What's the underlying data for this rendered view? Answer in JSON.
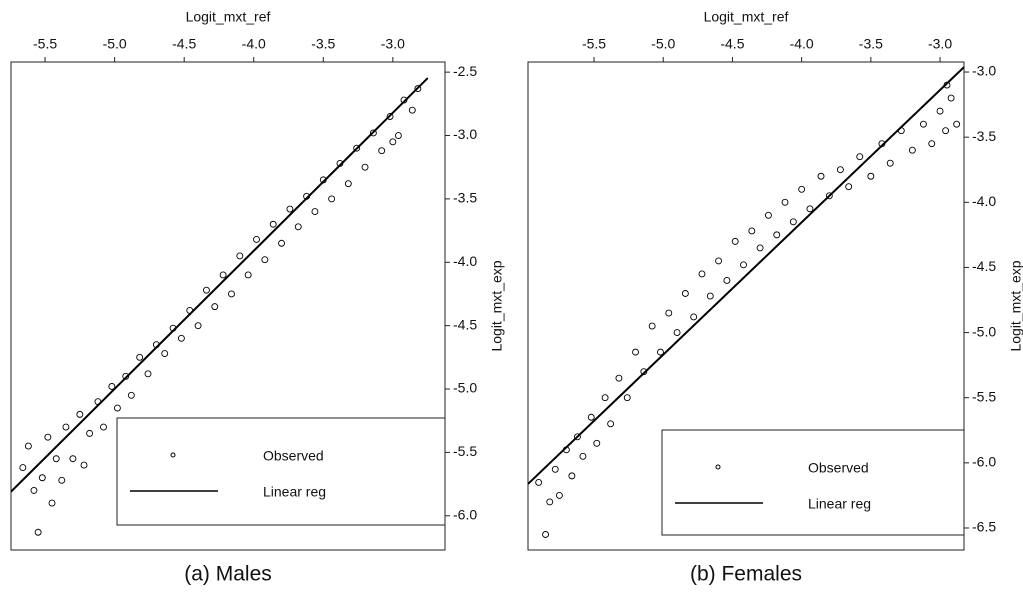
{
  "chart_data": [
    {
      "type": "scatter",
      "caption": "(a) Males",
      "xlabel": "Logit_mxt_ref",
      "ylabel": "Logit_mxt_exp",
      "xlim": [
        -5.745,
        -2.625
      ],
      "ylim": [
        -6.27,
        -2.42
      ],
      "xticks": [
        -5.5,
        {
          "value": -5,
          "label": "-5.0"
        },
        -4.5,
        {
          "value": -4,
          "label": "-4.0"
        },
        -3.5,
        {
          "value": -3,
          "label": "-3.0"
        }
      ],
      "yticks": [
        -2.5,
        {
          "value": -3,
          "label": "-3.0"
        },
        -3.5,
        {
          "value": -4,
          "label": "-4.0"
        },
        -4.5,
        {
          "value": -5,
          "label": "-5.0"
        },
        -5.5,
        {
          "value": -6,
          "label": "-6.0"
        }
      ],
      "legend": "lower right",
      "series": [
        {
          "name": "Observed",
          "type": "scatter",
          "color": "#000000",
          "x": [
            -5.66,
            -5.62,
            -5.58,
            -5.55,
            -5.52,
            -5.48,
            -5.45,
            -5.42,
            -5.38,
            -5.35,
            -5.3,
            -5.25,
            -5.22,
            -5.18,
            -5.12,
            -5.08,
            -5.02,
            -4.98,
            -4.92,
            -4.88,
            -4.82,
            -4.76,
            -4.7,
            -4.64,
            -4.58,
            -4.52,
            -4.46,
            -4.4,
            -4.34,
            -4.28,
            -4.22,
            -4.16,
            -4.1,
            -4.04,
            -3.98,
            -3.92,
            -3.86,
            -3.8,
            -3.74,
            -3.68,
            -3.62,
            -3.56,
            -3.5,
            -3.44,
            -3.38,
            -3.32,
            -3.26,
            -3.2,
            -3.14,
            -3.08,
            -3.02,
            -2.96,
            -2.92,
            -2.86,
            -2.82,
            -3.0
          ],
          "values": [
            -5.62,
            -5.45,
            -5.8,
            -6.13,
            -5.7,
            -5.38,
            -5.9,
            -5.55,
            -5.72,
            -5.3,
            -5.55,
            -5.2,
            -5.6,
            -5.35,
            -5.1,
            -5.3,
            -4.98,
            -5.15,
            -4.9,
            -5.05,
            -4.75,
            -4.88,
            -4.65,
            -4.72,
            -4.52,
            -4.6,
            -4.38,
            -4.5,
            -4.22,
            -4.35,
            -4.1,
            -4.25,
            -3.95,
            -4.1,
            -3.82,
            -3.98,
            -3.7,
            -3.85,
            -3.58,
            -3.72,
            -3.48,
            -3.6,
            -3.35,
            -3.5,
            -3.22,
            -3.38,
            -3.1,
            -3.25,
            -2.98,
            -3.12,
            -2.85,
            -3.0,
            -2.72,
            -2.8,
            -2.63,
            -3.05
          ]
        },
        {
          "name": "Linear reg",
          "type": "line",
          "color": "#000000",
          "x": [
            -5.745,
            -2.749
          ],
          "values": [
            -5.81,
            -2.547
          ]
        }
      ]
    },
    {
      "type": "scatter",
      "caption": "(b) Females",
      "xlabel": "Logit_mxt_ref",
      "ylabel": "Logit_mxt_exp",
      "xlim": [
        -5.977,
        -2.827
      ],
      "ylim": [
        -6.669,
        -2.923
      ],
      "xticks": [
        -5.5,
        {
          "value": -5,
          "label": "-5.0"
        },
        -4.5,
        {
          "value": -4,
          "label": "-4.0"
        },
        -3.5,
        {
          "value": -3,
          "label": "-3.0"
        }
      ],
      "yticks": [
        {
          "value": -3,
          "label": "-3.0"
        },
        -3.5,
        {
          "value": -4,
          "label": "-4.0"
        },
        -4.5,
        {
          "value": -5,
          "label": "-5.0"
        },
        -5.5,
        {
          "value": -6,
          "label": "-6.0"
        },
        -6.5
      ],
      "legend": "lower right",
      "series": [
        {
          "name": "Observed",
          "type": "scatter",
          "color": "#000000",
          "x": [
            -5.9,
            -5.85,
            -5.82,
            -5.78,
            -5.75,
            -5.7,
            -5.66,
            -5.62,
            -5.58,
            -5.52,
            -5.48,
            -5.42,
            -5.38,
            -5.32,
            -5.26,
            -5.2,
            -5.14,
            -5.08,
            -5.02,
            -4.96,
            -4.9,
            -4.84,
            -4.78,
            -4.72,
            -4.66,
            -4.6,
            -4.54,
            -4.48,
            -4.42,
            -4.36,
            -4.3,
            -4.24,
            -4.18,
            -4.12,
            -4.06,
            -4.0,
            -3.94,
            -3.86,
            -3.8,
            -3.72,
            -3.66,
            -3.58,
            -3.5,
            -3.42,
            -3.36,
            -3.28,
            -3.2,
            -3.12,
            -3.06,
            -3.0,
            -2.96,
            -2.92,
            -2.88,
            -2.95
          ],
          "values": [
            -6.15,
            -6.55,
            -6.3,
            -6.05,
            -6.25,
            -5.9,
            -6.1,
            -5.8,
            -5.95,
            -5.65,
            -5.85,
            -5.5,
            -5.7,
            -5.35,
            -5.5,
            -5.15,
            -5.3,
            -4.95,
            -5.15,
            -4.85,
            -5.0,
            -4.7,
            -4.88,
            -4.55,
            -4.72,
            -4.45,
            -4.6,
            -4.3,
            -4.48,
            -4.22,
            -4.35,
            -4.1,
            -4.25,
            -4.0,
            -4.15,
            -3.9,
            -4.05,
            -3.8,
            -3.95,
            -3.75,
            -3.88,
            -3.65,
            -3.8,
            -3.55,
            -3.7,
            -3.45,
            -3.6,
            -3.4,
            -3.55,
            -3.3,
            -3.45,
            -3.2,
            -3.4,
            -3.1
          ]
        },
        {
          "name": "Linear reg",
          "type": "line",
          "color": "#000000",
          "x": [
            -5.977,
            -2.827
          ],
          "values": [
            -6.162,
            -2.962
          ]
        }
      ]
    }
  ]
}
